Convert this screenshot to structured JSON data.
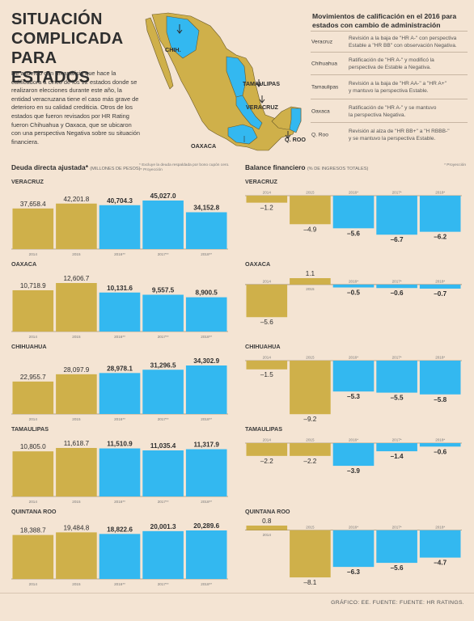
{
  "title": [
    "SITUACIÓN",
    "COMPLICADA",
    "PARA ESTADOS"
  ],
  "intro": "De acuerdo con un análisis que hace la calificadora a cinco de los 12 estados donde se realizaron elecciones durante este año, la entidad veracruzana tiene el caso más grave de deterioro en su calidad crediticia. Otros de los estados que fueron revisados por HR Rating fueron Chihuahua y Oaxaca, que se ubicaron con una perspectiva Negativa sobre su situación financiera.",
  "map": {
    "labels": [
      "CHIH.",
      "TAMAULIPAS",
      "VERACRUZ",
      "OAXACA",
      "Q. ROO"
    ],
    "colors": {
      "land": "#cfb04a",
      "highlight": "#33b8f0",
      "border": "#6a5a2a"
    }
  },
  "ratings": {
    "title": "Movimientos de calificación en el 2016 para estados con cambio de administración",
    "rows": [
      {
        "state": "Veracruz",
        "line1": "Revisión a la baja de \"HR A-\" con perspectiva",
        "line2": "Estable a \"HR BB\" con observación Negativa."
      },
      {
        "state": "Chihuahua",
        "line1": "Ratificación de \"HR A-\" y modificó la",
        "line2": "perspectiva de Estable a Negativa."
      },
      {
        "state": "Tamaulipas",
        "line1": "Revisión a la baja de \"HR AA-\" a \"HR A+\"",
        "line2": "y mantuvo la perspectiva Estable."
      },
      {
        "state": "Oaxaca",
        "line1": "Ratificación de \"HR A-\" y se mantuvo",
        "line2": "la perspectiva Negativa."
      },
      {
        "state": "Q. Roo",
        "line1": "Revisión al alza de \"HR BB+\" a \"H RBBB-\"",
        "line2": "y se mantuvo la perspectiva Estable."
      }
    ]
  },
  "debt_section": {
    "title": "Deuda directa ajustada*",
    "subtitle": "(MILLONES DE PESOS)",
    "note1": "* Excluye la deuda respaldada por bono cupón cero.",
    "note2": "** Proyección"
  },
  "balance_section": {
    "title": "Balance financiero",
    "subtitle": "(% DE INGRESOS TOTALES)",
    "note": "* Proyección"
  },
  "colors": {
    "historic": "#cfb04a",
    "projected": "#33b8f0",
    "baseline": "#7a6a4a"
  },
  "chart_data": [
    {
      "type": "bar",
      "title": "VERACRUZ",
      "chart": "Deuda directa ajustada",
      "categories": [
        "2014",
        "2015",
        "2016**",
        "2017**",
        "2018**"
      ],
      "values": [
        37658.4,
        42201.8,
        40704.3,
        45027.0,
        34152.8
      ],
      "labels": [
        "37,658.4",
        "42,201.8",
        "40,704.3",
        "45,027.0",
        "34,152.8"
      ]
    },
    {
      "type": "bar",
      "title": "OAXACA",
      "chart": "Deuda directa ajustada",
      "categories": [
        "2014",
        "2015",
        "2016**",
        "2017**",
        "2018**"
      ],
      "values": [
        10718.9,
        12606.7,
        10131.6,
        9557.5,
        8900.5
      ],
      "labels": [
        "10,718.9",
        "12,606.7",
        "10,131.6",
        "9,557.5",
        "8,900.5"
      ]
    },
    {
      "type": "bar",
      "title": "CHIHUAHUA",
      "chart": "Deuda directa ajustada",
      "categories": [
        "2014",
        "2015",
        "2016**",
        "2017**",
        "2018**"
      ],
      "values": [
        22955.7,
        28097.9,
        28978.1,
        31296.5,
        34302.9
      ],
      "labels": [
        "22,955.7",
        "28,097.9",
        "28,978.1",
        "31,296.5",
        "34,302.9"
      ]
    },
    {
      "type": "bar",
      "title": "TAMAULIPAS",
      "chart": "Deuda directa ajustada",
      "categories": [
        "2014",
        "2015",
        "2016**",
        "2017**",
        "2018**"
      ],
      "values": [
        10805.0,
        11618.7,
        11510.9,
        11035.4,
        11317.9
      ],
      "labels": [
        "10,805.0",
        "11,618.7",
        "11,510.9",
        "11,035.4",
        "11,317.9"
      ]
    },
    {
      "type": "bar",
      "title": "QUINTANA ROO",
      "chart": "Deuda directa ajustada",
      "categories": [
        "2014",
        "2015",
        "2016**",
        "2017**",
        "2018**"
      ],
      "values": [
        18388.7,
        19484.8,
        18822.6,
        20001.3,
        20289.6
      ],
      "labels": [
        "18,388.7",
        "19,484.8",
        "18,822.6",
        "20,001.3",
        "20,289.6"
      ]
    },
    {
      "type": "bar",
      "title": "VERACRUZ",
      "chart": "Balance financiero",
      "categories": [
        "2014",
        "2015",
        "2016*",
        "2017*",
        "2018*"
      ],
      "values": [
        -1.2,
        -4.9,
        -5.6,
        -6.7,
        -6.2
      ],
      "labels": [
        "-1.2",
        "-4.9",
        "-5.6",
        "-6.7",
        "-6.2"
      ]
    },
    {
      "type": "bar",
      "title": "OAXACA",
      "chart": "Balance financiero",
      "categories": [
        "2014",
        "2015",
        "2016*",
        "2017*",
        "2018*"
      ],
      "values": [
        -5.6,
        1.1,
        -0.5,
        -0.6,
        -0.7
      ],
      "labels": [
        "-5.6",
        "1.1",
        "-0.5",
        "-0.6",
        "-0.7"
      ]
    },
    {
      "type": "bar",
      "title": "CHIHUAHUA",
      "chart": "Balance financiero",
      "categories": [
        "2014",
        "2015",
        "2016*",
        "2017*",
        "2018*"
      ],
      "values": [
        -1.5,
        -9.2,
        -5.3,
        -5.5,
        -5.8
      ],
      "labels": [
        "-1.5",
        "-9.2",
        "-5.3",
        "-5.5",
        "-5.8"
      ]
    },
    {
      "type": "bar",
      "title": "TAMAULIPAS",
      "chart": "Balance financiero",
      "categories": [
        "2014",
        "2015",
        "2016*",
        "2017*",
        "2018*"
      ],
      "values": [
        -2.2,
        -2.2,
        -3.9,
        -1.4,
        -0.6
      ],
      "labels": [
        "-2.2",
        "-2.2",
        "-3.9",
        "-1.4",
        "-0.6"
      ]
    },
    {
      "type": "bar",
      "title": "QUINTANA ROO",
      "chart": "Balance financiero",
      "categories": [
        "2014",
        "2015",
        "2016*",
        "2017*",
        "2018*"
      ],
      "values": [
        0.8,
        -8.1,
        -6.3,
        -5.6,
        -4.7
      ],
      "labels": [
        "0.8",
        "-8.1",
        "-6.3",
        "-5.6",
        "-4.7"
      ]
    }
  ],
  "footer": "GRÁFICO: EE. FUENTE: FUENTE: HR RATINGS."
}
